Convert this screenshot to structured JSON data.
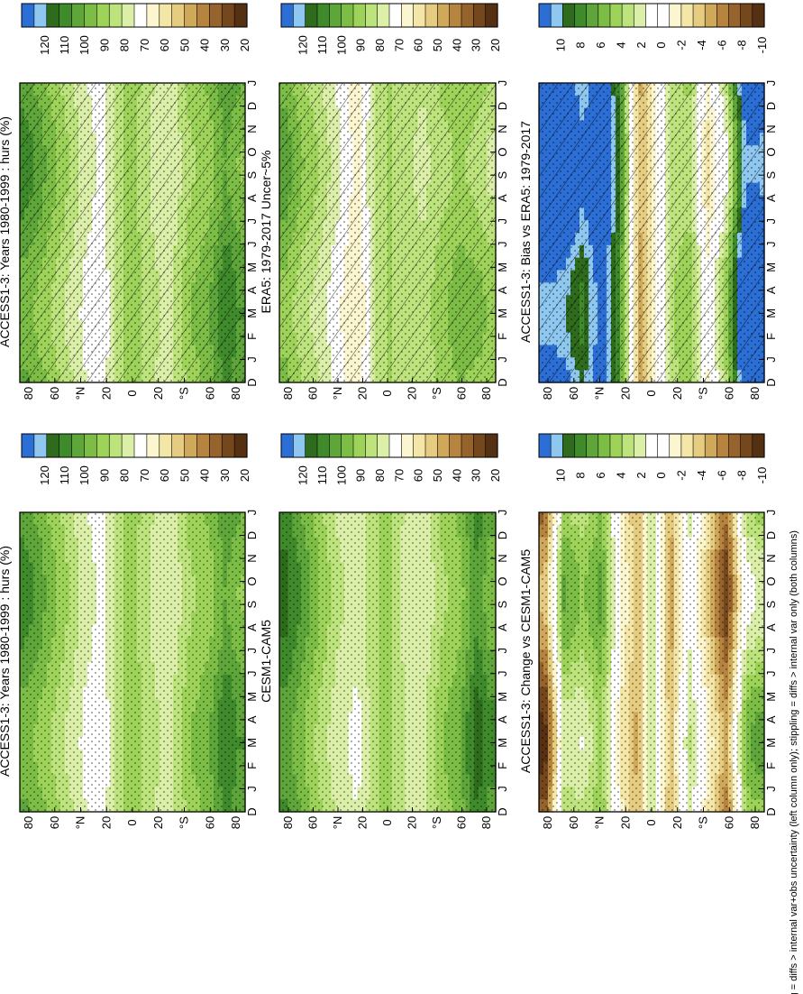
{
  "footer": "hatching = diffs > internal var+obs uncertainty (left column only); stippling = diffs > internal var only (both columns)",
  "months": [
    "D",
    "J",
    "F",
    "M",
    "A",
    "M",
    "J",
    "J",
    "A",
    "S",
    "O",
    "N",
    "D",
    "J"
  ],
  "lat_labels": [
    "80",
    "60",
    "°N",
    "20",
    "0",
    "20",
    "°S",
    "60",
    "80"
  ],
  "palette_abs": [
    "#2b6fd6",
    "#8ec8f0",
    "#2e6b1c",
    "#3f8a2a",
    "#5ea53a",
    "#7cbd46",
    "#9ed35a",
    "#bde37c",
    "#dcefa8",
    "#ffffff",
    "#fbf6cf",
    "#f3e6a7",
    "#e5cc80",
    "#cfa85a",
    "#b6843e",
    "#96632c",
    "#74471d",
    "#553013"
  ],
  "palette_diff": [
    "#2b6fd6",
    "#8ec8f0",
    "#2e6b1c",
    "#3f8a2a",
    "#5ea53a",
    "#7cbd46",
    "#9ed35a",
    "#bde37c",
    "#dcefa8",
    "#ffffff",
    "#ffffff",
    "#fbf6cf",
    "#f3e6a7",
    "#e5cc80",
    "#cfa85a",
    "#b6843e",
    "#96632c",
    "#74471d",
    "#553013"
  ],
  "colorbar_abs_labels": [
    "120",
    "110",
    "100",
    "90",
    "80",
    "70",
    "60",
    "50",
    "40",
    "30",
    "20"
  ],
  "colorbar_diff_labels": [
    "10",
    "8",
    "6",
    "4",
    "2",
    "0",
    "-2",
    "-4",
    "-6",
    "-8",
    "-10"
  ],
  "chart_data": [
    {
      "type": "heatmap",
      "panel": "left-top",
      "title": "ACCESS1-3: Years 1980-1999 : hurs (%)",
      "variable": "hurs",
      "units": "%",
      "x_axis": "month",
      "y_axis": "latitude",
      "clim": [
        20,
        120
      ],
      "zonal_profile": [
        {
          "lat": 85,
          "value": 95
        },
        {
          "lat": 70,
          "value": 88
        },
        {
          "lat": 55,
          "value": 80
        },
        {
          "lat": 40,
          "value": 72
        },
        {
          "lat": 25,
          "value": 66
        },
        {
          "lat": 10,
          "value": 80
        },
        {
          "lat": 0,
          "value": 84
        },
        {
          "lat": -15,
          "value": 76
        },
        {
          "lat": -30,
          "value": 72
        },
        {
          "lat": -45,
          "value": 83
        },
        {
          "lat": -60,
          "value": 87
        },
        {
          "lat": -75,
          "value": 98
        },
        {
          "lat": -85,
          "value": 92
        }
      ],
      "hatching": true,
      "stippling": true
    },
    {
      "type": "heatmap",
      "panel": "left-middle",
      "title": "ERA5: 1979-2017 Uncer~5%",
      "variable": "hurs",
      "units": "%",
      "x_axis": "month",
      "y_axis": "latitude",
      "clim": [
        20,
        120
      ],
      "zonal_profile": [
        {
          "lat": 85,
          "value": 90
        },
        {
          "lat": 70,
          "value": 82
        },
        {
          "lat": 55,
          "value": 76
        },
        {
          "lat": 40,
          "value": 68
        },
        {
          "lat": 25,
          "value": 60
        },
        {
          "lat": 10,
          "value": 76
        },
        {
          "lat": 0,
          "value": 82
        },
        {
          "lat": -15,
          "value": 78
        },
        {
          "lat": -30,
          "value": 76
        },
        {
          "lat": -45,
          "value": 82
        },
        {
          "lat": -60,
          "value": 86
        },
        {
          "lat": -75,
          "value": 84
        },
        {
          "lat": -85,
          "value": 80
        }
      ],
      "hatching": true,
      "stippling": true
    },
    {
      "type": "heatmap",
      "panel": "left-bottom",
      "title": "ACCESS1-3: Bias vs ERA5: 1979-2017",
      "variable": "hurs bias",
      "units": "%",
      "x_axis": "month",
      "y_axis": "latitude",
      "clim": [
        -10,
        10
      ],
      "zonal_profile": [
        {
          "lat": 85,
          "value": 11
        },
        {
          "lat": 70,
          "value": 10
        },
        {
          "lat": 55,
          "value": 8
        },
        {
          "lat": 40,
          "value": 11
        },
        {
          "lat": 25,
          "value": 6
        },
        {
          "lat": 10,
          "value": -5
        },
        {
          "lat": 0,
          "value": -3
        },
        {
          "lat": -15,
          "value": 2
        },
        {
          "lat": -30,
          "value": 3
        },
        {
          "lat": -45,
          "value": -2
        },
        {
          "lat": -60,
          "value": 2
        },
        {
          "lat": -75,
          "value": 11
        },
        {
          "lat": -85,
          "value": 11
        }
      ],
      "hatching": true,
      "stippling": true
    },
    {
      "type": "heatmap",
      "panel": "right-top",
      "title": "ACCESS1-3: Years 1980-1999 : hurs (%)",
      "variable": "hurs",
      "units": "%",
      "x_axis": "month",
      "y_axis": "latitude",
      "clim": [
        20,
        120
      ],
      "zonal_profile": [
        {
          "lat": 85,
          "value": 95
        },
        {
          "lat": 70,
          "value": 88
        },
        {
          "lat": 55,
          "value": 80
        },
        {
          "lat": 40,
          "value": 72
        },
        {
          "lat": 25,
          "value": 66
        },
        {
          "lat": 10,
          "value": 80
        },
        {
          "lat": 0,
          "value": 84
        },
        {
          "lat": -15,
          "value": 76
        },
        {
          "lat": -30,
          "value": 72
        },
        {
          "lat": -45,
          "value": 83
        },
        {
          "lat": -60,
          "value": 87
        },
        {
          "lat": -75,
          "value": 98
        },
        {
          "lat": -85,
          "value": 92
        }
      ],
      "hatching": false,
      "stippling": true
    },
    {
      "type": "heatmap",
      "panel": "right-middle",
      "title": "CESM1-CAM5",
      "variable": "hurs",
      "units": "%",
      "x_axis": "month",
      "y_axis": "latitude",
      "clim": [
        20,
        120
      ],
      "zonal_profile": [
        {
          "lat": 85,
          "value": 100
        },
        {
          "lat": 70,
          "value": 92
        },
        {
          "lat": 55,
          "value": 82
        },
        {
          "lat": 40,
          "value": 74
        },
        {
          "lat": 25,
          "value": 70
        },
        {
          "lat": 10,
          "value": 80
        },
        {
          "lat": 0,
          "value": 84
        },
        {
          "lat": -15,
          "value": 74
        },
        {
          "lat": -30,
          "value": 72
        },
        {
          "lat": -45,
          "value": 83
        },
        {
          "lat": -60,
          "value": 88
        },
        {
          "lat": -75,
          "value": 102
        },
        {
          "lat": -85,
          "value": 94
        }
      ],
      "hatching": false,
      "stippling": true
    },
    {
      "type": "heatmap",
      "panel": "right-bottom",
      "title": "ACCESS1-3: Change vs CESM1-CAM5",
      "variable": "hurs difference",
      "units": "%",
      "x_axis": "month",
      "y_axis": "latitude",
      "clim": [
        -10,
        10
      ],
      "zonal_profile": [
        {
          "lat": 85,
          "value": -7
        },
        {
          "lat": 70,
          "value": 3
        },
        {
          "lat": 55,
          "value": 2
        },
        {
          "lat": 40,
          "value": 4
        },
        {
          "lat": 25,
          "value": -2
        },
        {
          "lat": 10,
          "value": -5
        },
        {
          "lat": 0,
          "value": 2
        },
        {
          "lat": -15,
          "value": -5
        },
        {
          "lat": -30,
          "value": 1
        },
        {
          "lat": -45,
          "value": -3
        },
        {
          "lat": -60,
          "value": -7
        },
        {
          "lat": -75,
          "value": 2
        },
        {
          "lat": -85,
          "value": 3
        }
      ],
      "hatching": false,
      "stippling": true
    }
  ]
}
